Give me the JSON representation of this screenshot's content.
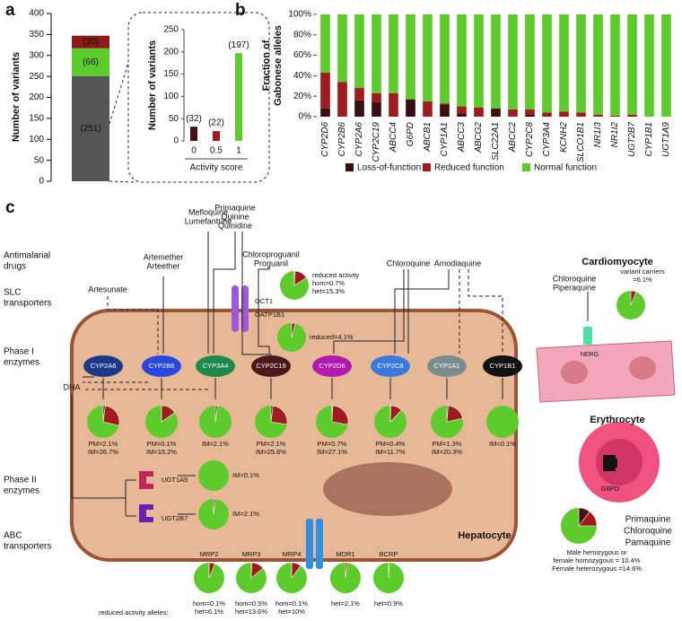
{
  "chart_data": [
    {
      "type": "stacked-bar",
      "panel": "a",
      "ylabel": "Number of variants",
      "categories": [
        null
      ],
      "series": [
        {
          "color": "#555555",
          "values": [
            251
          ],
          "value_labels": [
            "(251)"
          ]
        },
        {
          "color": "#5ecb2c",
          "values": [
            66
          ],
          "value_labels": [
            "(66)"
          ]
        },
        {
          "color": "#8b1a1a",
          "values": [
            30
          ],
          "value_labels": [
            "(30)"
          ]
        }
      ],
      "ylim": [
        0,
        400
      ],
      "yticks": [
        0,
        50,
        100,
        150,
        200,
        250,
        300,
        350,
        400
      ]
    },
    {
      "type": "bar",
      "ylabel": "Number of variants",
      "xlabel": "Activity score",
      "categories": [
        "0",
        "0.5",
        "1"
      ],
      "values": [
        32,
        22,
        197
      ],
      "value_labels": [
        "(32)",
        "(22)",
        "(197)"
      ],
      "colors": [
        "#4a0f14",
        "#a01a1e",
        "#5ecb2c"
      ],
      "ylim": [
        0,
        250
      ],
      "yticks": [
        0,
        50,
        100,
        150,
        200,
        250
      ]
    },
    {
      "type": "stacked-bar",
      "panel": "b",
      "ylabel": [
        "Fraction of",
        "Gabonese alleles"
      ],
      "categories": [
        "CYP2D6",
        "CYP2B6",
        "CYP2A6",
        "CYP2C19",
        "ABCC4",
        "G6PD",
        "ABCB1",
        "CYP1A1",
        "ABCC3",
        "ABCG2",
        "SLC22A1",
        "ABCC2",
        "CYP2C8",
        "CYP3A4",
        "KCNH2",
        "SLCO1B1",
        "NR1I3",
        "NR1I2",
        "UGT2B7",
        "CYP1B1",
        "UGT1A9"
      ],
      "series": [
        {
          "name": "Loss-of-function",
          "color": "#3b0c10",
          "values": [
            8,
            0,
            16,
            14,
            0,
            17,
            0,
            12,
            3,
            0,
            8,
            0,
            2,
            0,
            0,
            0,
            0,
            0,
            0,
            0,
            0
          ]
        },
        {
          "name": "Reduced function",
          "color": "#a01a1e",
          "values": [
            35,
            34,
            12,
            9,
            23,
            0,
            15,
            1,
            7,
            9,
            0,
            7,
            5,
            4,
            5,
            4,
            2,
            1,
            2,
            0,
            0
          ]
        },
        {
          "name": "Normal function",
          "color": "#5ecb2c",
          "values": [
            57,
            66,
            72,
            77,
            77,
            83,
            85,
            87,
            90,
            91,
            92,
            93,
            93,
            96,
            95,
            96,
            98,
            99,
            98,
            100,
            100
          ]
        }
      ],
      "ylim": [
        0,
        100
      ],
      "yticks": [
        {
          "value": 0,
          "label": "0%"
        },
        {
          "value": 20,
          "label": "20%"
        },
        {
          "value": 40,
          "label": "40%"
        },
        {
          "value": 60,
          "label": "60%"
        },
        {
          "value": 80,
          "label": "80%"
        },
        {
          "value": 100,
          "label": "100%"
        }
      ],
      "legend": "bottom"
    }
  ],
  "diagram": {
    "panel": "c",
    "rows": [
      [
        "Antimalarial",
        "drugs"
      ],
      [
        "SLC",
        "transporters"
      ],
      [
        "Phase I",
        "enzymes"
      ],
      [
        "Phase II",
        "enzymes"
      ],
      [
        "ABC",
        "transporters"
      ]
    ],
    "drugs": [
      [
        "Artesunate"
      ],
      [
        "Artemether",
        "Arteether"
      ],
      [
        "Mefloquine",
        "Lumefantrine"
      ],
      [
        "Primaquine",
        "Quinine",
        "Quinidine"
      ],
      [
        "Chloroproguanil",
        "Proguanil"
      ],
      [
        "Chloroquine"
      ],
      [
        "Amodiaquine"
      ]
    ],
    "metabolite": "DHA",
    "cells": [
      "Hepatocyte",
      "Cardiomyocyte",
      "Erythrocyte"
    ],
    "enzymes": [
      "CYP2A6",
      "CYP2B6",
      "CYP3A4",
      "CYP2C19",
      "CYP2D6",
      "CYP2C8",
      "CYP1A1",
      "CYP1B1"
    ],
    "proteins": [
      "OCT1",
      "OATP1B1",
      "UGT1A9",
      "UGT2B7",
      "hERG",
      "G6PD",
      "MRP2",
      "MRP3",
      "MRP4",
      "MDR1",
      "BCRP"
    ],
    "cardio_drugs": [
      "Chloroquine",
      "Piperaquine"
    ],
    "erythro_drugs": [
      "Primaquine",
      "Chloroquine",
      "Pamaquine"
    ],
    "abc_note": "reduced activity alleles:",
    "base_color": "#5ecb2c",
    "pies": [
      {
        "labels": [
          "reduced activity",
          "hom=0.7%",
          "het=15.3%"
        ],
        "slices": [
          {
            "value": 0.7,
            "color": "#4a0f14"
          },
          {
            "value": 15.3,
            "color": "#a01a1e"
          }
        ]
      },
      {
        "labels": [
          "reduced=4.1%"
        ],
        "slices": [
          {
            "value": 4.1,
            "color": "#a01a1e"
          }
        ]
      },
      {
        "labels": [
          "PM=2.1%",
          "IM=26.7%"
        ],
        "slices": [
          {
            "value": 2.1,
            "color": "#4a0f14"
          },
          {
            "value": 26.7,
            "color": "#a01a1e"
          }
        ]
      },
      {
        "labels": [
          "PM=0.1%",
          "IM=15.2%"
        ],
        "slices": [
          {
            "value": 0.1,
            "color": "#4a0f14"
          },
          {
            "value": 15.2,
            "color": "#a01a1e"
          }
        ]
      },
      {
        "labels": [
          "IM=2.1%"
        ],
        "slices": [
          {
            "value": 2.1,
            "color": "#a01a1e"
          }
        ]
      },
      {
        "labels": [
          "PM=2.1%",
          "IM=25.6%"
        ],
        "slices": [
          {
            "value": 2.1,
            "color": "#4a0f14"
          },
          {
            "value": 25.6,
            "color": "#a01a1e"
          }
        ]
      },
      {
        "labels": [
          "PM=0.7%",
          "IM=27.1%"
        ],
        "slices": [
          {
            "value": 0.7,
            "color": "#4a0f14"
          },
          {
            "value": 27.1,
            "color": "#a01a1e"
          }
        ]
      },
      {
        "labels": [
          "PM=0.4%",
          "IM=11.7%"
        ],
        "slices": [
          {
            "value": 0.4,
            "color": "#4a0f14"
          },
          {
            "value": 11.7,
            "color": "#a01a1e"
          }
        ]
      },
      {
        "labels": [
          "PM=1.3%",
          "IM=20.3%"
        ],
        "slices": [
          {
            "value": 1.3,
            "color": "#4a0f14"
          },
          {
            "value": 20.3,
            "color": "#a01a1e"
          }
        ]
      },
      {
        "labels": [
          "IM<0.1%"
        ],
        "slices": []
      },
      {
        "labels": [
          "IM<0.1%"
        ],
        "slices": []
      },
      {
        "labels": [
          "IM=2.1%"
        ],
        "slices": [
          {
            "value": 2.1,
            "color": "#a01a1e"
          }
        ]
      },
      {
        "labels": [
          "hom=0.1%",
          "het=6.1%"
        ],
        "slices": [
          {
            "value": 0.1,
            "color": "#4a0f14"
          },
          {
            "value": 6.1,
            "color": "#a01a1e"
          }
        ]
      },
      {
        "labels": [
          "hom=0.5%",
          "het=13.6%"
        ],
        "slices": [
          {
            "value": 0.5,
            "color": "#4a0f14"
          },
          {
            "value": 13.6,
            "color": "#a01a1e"
          }
        ]
      },
      {
        "labels": [
          "hom=0.1%",
          "het=10%"
        ],
        "slices": [
          {
            "value": 0.1,
            "color": "#4a0f14"
          },
          {
            "value": 10,
            "color": "#a01a1e"
          }
        ]
      },
      {
        "labels": [
          "het=2.1%"
        ],
        "slices": [
          {
            "value": 2.1,
            "color": "#a01a1e"
          }
        ]
      },
      {
        "labels": [
          "het=0.9%"
        ],
        "slices": [
          {
            "value": 0.9,
            "color": "#a01a1e"
          }
        ]
      },
      {
        "labels": [
          "variant carriers",
          "=6.1%"
        ],
        "slices": [
          {
            "value": 6.1,
            "color": "#a01a1e"
          }
        ]
      },
      {
        "labels": [
          "Male hemizygous or",
          "female homozygous = 10.4%",
          "Female heterozygous =14.6%"
        ],
        "slices": [
          {
            "value": 10.4,
            "color": "#4a0f14"
          },
          {
            "value": 14.6,
            "color": "#a01a1e"
          }
        ]
      }
    ]
  }
}
